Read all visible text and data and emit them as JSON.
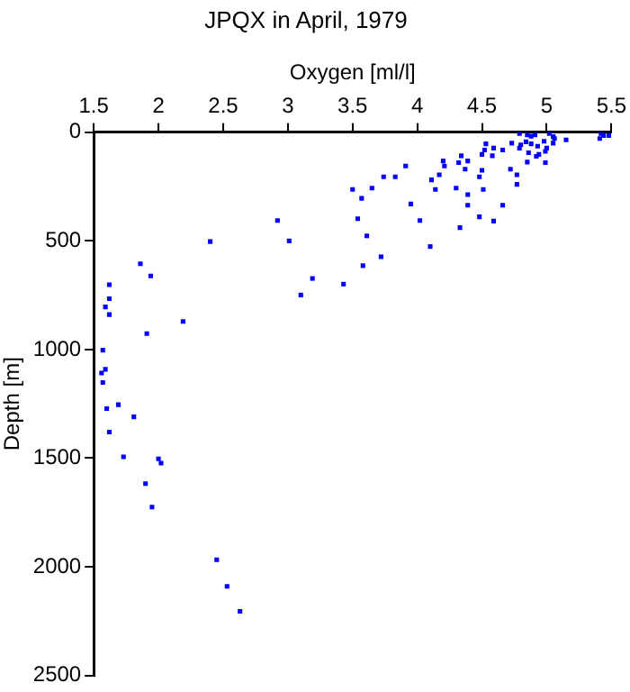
{
  "chart_data": {
    "type": "scatter",
    "title": "JPQX in April, 1979",
    "xlabel": "Oxygen [ml/l]",
    "ylabel": "Depth [m]",
    "xlim": [
      1.5,
      5.5
    ],
    "xticks": [
      1.5,
      2,
      2.5,
      3,
      3.5,
      4,
      4.5,
      5,
      5.5
    ],
    "ylim": [
      2500,
      0
    ],
    "yticks": [
      0,
      500,
      1000,
      1500,
      2000,
      2500
    ],
    "grid": false,
    "legend": false,
    "marker": "square",
    "series": [
      {
        "color": "#0000ff",
        "x": [
          4.79,
          4.85,
          4.88,
          4.91,
          5.02,
          5.05,
          5.06,
          5.42,
          5.41,
          5.44,
          5.48,
          5.15,
          4.73,
          4.8,
          4.84,
          4.88,
          4.93,
          4.98,
          5.05,
          5.0,
          4.94,
          4.86,
          4.92,
          4.99,
          4.79,
          4.66,
          4.59,
          4.53,
          4.52,
          4.5,
          4.58,
          4.39,
          4.34,
          4.32,
          4.2,
          4.21,
          4.37,
          4.5,
          4.48,
          4.17,
          4.11,
          3.91,
          3.83,
          3.74,
          4.72,
          4.77,
          4.77,
          4.85,
          4.99,
          3.65,
          3.5,
          3.57,
          4.14,
          4.3,
          4.51,
          4.39,
          4.39,
          4.66,
          3.95,
          3.54,
          2.92,
          4.02,
          4.48,
          4.59,
          4.33,
          3.61,
          3.01,
          2.4,
          4.1,
          3.72,
          1.86,
          1.94,
          3.58,
          3.19,
          3.43,
          3.1,
          1.62,
          1.62,
          1.59,
          1.62,
          1.91,
          2.19,
          1.57,
          1.59,
          1.56,
          1.57,
          1.69,
          1.6,
          1.81,
          1.62,
          1.73,
          2.0,
          2.02,
          1.9,
          1.95,
          2.45,
          2.53,
          2.63
        ],
        "values": [
          6,
          12,
          18,
          12,
          6,
          20,
          29,
          6,
          29,
          15,
          15,
          35,
          50,
          58,
          44,
          53,
          64,
          41,
          50,
          73,
          102,
          94,
          111,
          88,
          73,
          82,
          73,
          53,
          82,
          102,
          108,
          132,
          108,
          140,
          132,
          155,
          170,
          175,
          205,
          196,
          219,
          155,
          205,
          205,
          170,
          196,
          240,
          137,
          140,
          257,
          263,
          304,
          263,
          257,
          263,
          287,
          336,
          336,
          330,
          398,
          406,
          406,
          389,
          409,
          439,
          477,
          500,
          503,
          526,
          573,
          605,
          661,
          614,
          673,
          699,
          749,
          702,
          766,
          804,
          839,
          927,
          871,
          1003,
          1091,
          1108,
          1152,
          1254,
          1272,
          1310,
          1380,
          1494,
          1503,
          1523,
          1617,
          1725,
          1968,
          2090,
          2205
        ]
      }
    ]
  }
}
